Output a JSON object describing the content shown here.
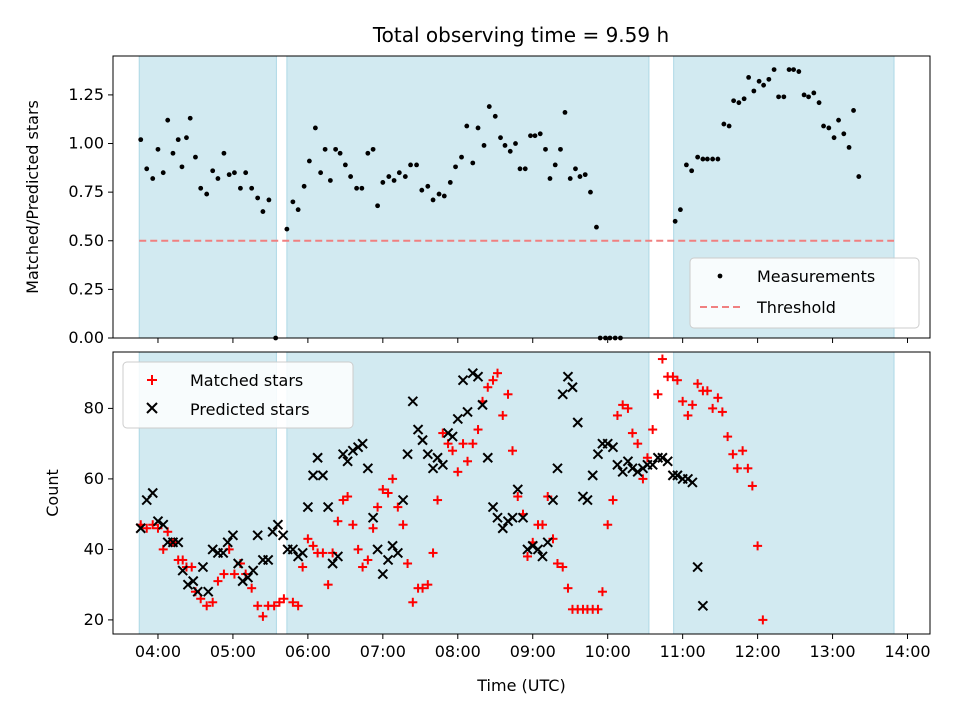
{
  "chart_data": {
    "title": "Total observing time = 9.59 h",
    "xlabel": "Time (UTC)",
    "xticks": [
      "04:00",
      "05:00",
      "06:00",
      "07:00",
      "08:00",
      "09:00",
      "10:00",
      "11:00",
      "12:00",
      "13:00",
      "14:00"
    ],
    "xlim_hours": [
      3.4,
      14.3
    ],
    "observing_windows_hours": [
      [
        3.75,
        5.58
      ],
      [
        5.72,
        10.55
      ],
      [
        10.88,
        13.82
      ]
    ],
    "band_color": "#add8e6",
    "top": {
      "type": "scatter",
      "ylabel": "Matched/Predicted stars",
      "ylim": [
        0,
        1.45
      ],
      "yticks": [
        "0.00",
        "0.25",
        "0.50",
        "0.75",
        "1.00",
        "1.25"
      ],
      "threshold": 0.5,
      "threshold_color": "#f08080",
      "legend": {
        "measurements": "Measurements",
        "threshold": "Threshold",
        "position": "lower right"
      },
      "points": [
        [
          3.77,
          1.02
        ],
        [
          3.85,
          0.87
        ],
        [
          3.93,
          0.82
        ],
        [
          4.0,
          0.97
        ],
        [
          4.07,
          0.85
        ],
        [
          4.13,
          1.12
        ],
        [
          4.2,
          0.95
        ],
        [
          4.27,
          1.02
        ],
        [
          4.32,
          0.88
        ],
        [
          4.38,
          1.03
        ],
        [
          4.43,
          1.13
        ],
        [
          4.5,
          0.93
        ],
        [
          4.57,
          0.77
        ],
        [
          4.65,
          0.74
        ],
        [
          4.73,
          0.86
        ],
        [
          4.8,
          0.82
        ],
        [
          4.88,
          0.95
        ],
        [
          4.95,
          0.84
        ],
        [
          5.02,
          0.85
        ],
        [
          5.1,
          0.77
        ],
        [
          5.17,
          0.85
        ],
        [
          5.25,
          0.77
        ],
        [
          5.33,
          0.72
        ],
        [
          5.4,
          0.65
        ],
        [
          5.48,
          0.71
        ],
        [
          5.57,
          0.0
        ],
        [
          5.72,
          0.56
        ],
        [
          5.8,
          0.7
        ],
        [
          5.87,
          0.66
        ],
        [
          5.95,
          0.78
        ],
        [
          6.02,
          0.91
        ],
        [
          6.1,
          1.08
        ],
        [
          6.17,
          0.85
        ],
        [
          6.23,
          0.97
        ],
        [
          6.3,
          0.81
        ],
        [
          6.37,
          0.97
        ],
        [
          6.43,
          0.95
        ],
        [
          6.5,
          0.89
        ],
        [
          6.57,
          0.83
        ],
        [
          6.65,
          0.77
        ],
        [
          6.72,
          0.77
        ],
        [
          6.8,
          0.95
        ],
        [
          6.87,
          0.97
        ],
        [
          6.93,
          0.68
        ],
        [
          7.0,
          0.8
        ],
        [
          7.08,
          0.83
        ],
        [
          7.15,
          0.81
        ],
        [
          7.22,
          0.85
        ],
        [
          7.3,
          0.83
        ],
        [
          7.37,
          0.89
        ],
        [
          7.45,
          0.89
        ],
        [
          7.52,
          0.76
        ],
        [
          7.6,
          0.78
        ],
        [
          7.67,
          0.71
        ],
        [
          7.75,
          0.74
        ],
        [
          7.82,
          0.73
        ],
        [
          7.9,
          0.8
        ],
        [
          7.97,
          0.88
        ],
        [
          8.05,
          0.93
        ],
        [
          8.12,
          1.09
        ],
        [
          8.2,
          0.9
        ],
        [
          8.27,
          1.08
        ],
        [
          8.35,
          0.99
        ],
        [
          8.42,
          1.19
        ],
        [
          8.5,
          1.14
        ],
        [
          8.57,
          1.03
        ],
        [
          8.63,
          0.99
        ],
        [
          8.7,
          0.96
        ],
        [
          8.77,
          1.0
        ],
        [
          8.83,
          0.87
        ],
        [
          8.9,
          0.87
        ],
        [
          8.97,
          1.04
        ],
        [
          9.03,
          1.04
        ],
        [
          9.1,
          1.05
        ],
        [
          9.17,
          0.97
        ],
        [
          9.23,
          0.82
        ],
        [
          9.3,
          0.89
        ],
        [
          9.37,
          0.97
        ],
        [
          9.43,
          1.16
        ],
        [
          9.5,
          0.82
        ],
        [
          9.57,
          0.87
        ],
        [
          9.63,
          0.83
        ],
        [
          9.7,
          0.84
        ],
        [
          9.77,
          0.75
        ],
        [
          9.85,
          0.57
        ],
        [
          9.9,
          0.0
        ],
        [
          9.97,
          0.0
        ],
        [
          10.03,
          0.0
        ],
        [
          10.1,
          0.0
        ],
        [
          10.17,
          0.0
        ],
        [
          10.9,
          0.6
        ],
        [
          10.97,
          0.66
        ],
        [
          11.05,
          0.89
        ],
        [
          11.12,
          0.86
        ],
        [
          11.2,
          0.93
        ],
        [
          11.27,
          0.92
        ],
        [
          11.33,
          0.92
        ],
        [
          11.4,
          0.92
        ],
        [
          11.47,
          0.92
        ],
        [
          11.55,
          1.1
        ],
        [
          11.62,
          1.09
        ],
        [
          11.68,
          1.22
        ],
        [
          11.75,
          1.21
        ],
        [
          11.82,
          1.23
        ],
        [
          11.88,
          1.34
        ],
        [
          11.95,
          1.27
        ],
        [
          12.02,
          1.32
        ],
        [
          12.08,
          1.3
        ],
        [
          12.15,
          1.33
        ],
        [
          12.22,
          1.38
        ],
        [
          12.28,
          1.24
        ],
        [
          12.35,
          1.24
        ],
        [
          12.42,
          1.38
        ],
        [
          12.48,
          1.38
        ],
        [
          12.55,
          1.37
        ],
        [
          12.62,
          1.25
        ],
        [
          12.68,
          1.24
        ],
        [
          12.75,
          1.26
        ],
        [
          12.82,
          1.21
        ],
        [
          12.88,
          1.09
        ],
        [
          12.95,
          1.08
        ],
        [
          13.02,
          1.03
        ],
        [
          13.08,
          1.12
        ],
        [
          13.15,
          1.05
        ],
        [
          13.22,
          0.98
        ],
        [
          13.28,
          1.17
        ],
        [
          13.35,
          0.83
        ]
      ]
    },
    "bottom": {
      "type": "scatter",
      "ylabel": "Count",
      "ylim": [
        16,
        96
      ],
      "yticks": [
        "20",
        "40",
        "60",
        "80"
      ],
      "legend": {
        "matched": "Matched stars",
        "predicted": "Predicted stars",
        "position": "upper left"
      },
      "matched_color": "#ff0000",
      "predicted_color": "#000000",
      "matched": [
        [
          3.77,
          47
        ],
        [
          3.85,
          46
        ],
        [
          3.93,
          47
        ],
        [
          4.0,
          46
        ],
        [
          4.07,
          40
        ],
        [
          4.13,
          45
        ],
        [
          4.2,
          42
        ],
        [
          4.27,
          37
        ],
        [
          4.33,
          37
        ],
        [
          4.38,
          35
        ],
        [
          4.45,
          35
        ],
        [
          4.5,
          28
        ],
        [
          4.57,
          26
        ],
        [
          4.65,
          24
        ],
        [
          4.73,
          25
        ],
        [
          4.8,
          31
        ],
        [
          4.88,
          33
        ],
        [
          4.95,
          40
        ],
        [
          5.02,
          33
        ],
        [
          5.1,
          36
        ],
        [
          5.17,
          33
        ],
        [
          5.25,
          29
        ],
        [
          5.33,
          24
        ],
        [
          5.4,
          21
        ],
        [
          5.47,
          24
        ],
        [
          5.55,
          24
        ],
        [
          5.62,
          25
        ],
        [
          5.68,
          26
        ],
        [
          5.8,
          25
        ],
        [
          5.87,
          24
        ],
        [
          5.93,
          35
        ],
        [
          6.0,
          43
        ],
        [
          6.07,
          41
        ],
        [
          6.13,
          39
        ],
        [
          6.2,
          39
        ],
        [
          6.27,
          30
        ],
        [
          6.33,
          39
        ],
        [
          6.4,
          48
        ],
        [
          6.47,
          54
        ],
        [
          6.53,
          55
        ],
        [
          6.6,
          47
        ],
        [
          6.67,
          40
        ],
        [
          6.73,
          35
        ],
        [
          6.8,
          37
        ],
        [
          6.87,
          46
        ],
        [
          6.93,
          52
        ],
        [
          7.0,
          57
        ],
        [
          7.07,
          56
        ],
        [
          7.13,
          60
        ],
        [
          7.2,
          52
        ],
        [
          7.27,
          47
        ],
        [
          7.33,
          36
        ],
        [
          7.4,
          25
        ],
        [
          7.47,
          29
        ],
        [
          7.53,
          29
        ],
        [
          7.6,
          30
        ],
        [
          7.67,
          39
        ],
        [
          7.73,
          54
        ],
        [
          7.8,
          73
        ],
        [
          7.87,
          70
        ],
        [
          7.93,
          68
        ],
        [
          8.0,
          62
        ],
        [
          8.07,
          70
        ],
        [
          8.13,
          65
        ],
        [
          8.2,
          70
        ],
        [
          8.27,
          74
        ],
        [
          8.33,
          82
        ],
        [
          8.4,
          86
        ],
        [
          8.47,
          88
        ],
        [
          8.53,
          90
        ],
        [
          8.6,
          78
        ],
        [
          8.67,
          84
        ],
        [
          8.73,
          68
        ],
        [
          8.8,
          55
        ],
        [
          8.87,
          50
        ],
        [
          8.93,
          38
        ],
        [
          9.0,
          42
        ],
        [
          9.07,
          47
        ],
        [
          9.13,
          47
        ],
        [
          9.2,
          55
        ],
        [
          9.27,
          43
        ],
        [
          9.33,
          36
        ],
        [
          9.4,
          35
        ],
        [
          9.47,
          29
        ],
        [
          9.53,
          23
        ],
        [
          9.6,
          23
        ],
        [
          9.67,
          23
        ],
        [
          9.73,
          23
        ],
        [
          9.8,
          23
        ],
        [
          9.87,
          23
        ],
        [
          9.93,
          28
        ],
        [
          10.0,
          47
        ],
        [
          10.07,
          54
        ],
        [
          10.13,
          78
        ],
        [
          10.2,
          81
        ],
        [
          10.27,
          80
        ],
        [
          10.33,
          73
        ],
        [
          10.4,
          70
        ],
        [
          10.47,
          60
        ],
        [
          10.53,
          66
        ],
        [
          10.6,
          74
        ],
        [
          10.67,
          84
        ],
        [
          10.73,
          94
        ],
        [
          10.8,
          89
        ],
        [
          10.87,
          89
        ],
        [
          10.93,
          88
        ],
        [
          11.0,
          82
        ],
        [
          11.07,
          78
        ],
        [
          11.13,
          81
        ],
        [
          11.2,
          87
        ],
        [
          11.27,
          85
        ],
        [
          11.33,
          85
        ],
        [
          11.4,
          80
        ],
        [
          11.47,
          83
        ],
        [
          11.53,
          79
        ],
        [
          11.6,
          72
        ],
        [
          11.67,
          67
        ],
        [
          11.73,
          63
        ],
        [
          11.8,
          68
        ],
        [
          11.87,
          63
        ],
        [
          11.93,
          58
        ],
        [
          12.0,
          41
        ],
        [
          12.07,
          20
        ]
      ],
      "predicted": [
        [
          3.77,
          46
        ],
        [
          3.85,
          54
        ],
        [
          3.93,
          56
        ],
        [
          4.0,
          48
        ],
        [
          4.07,
          47
        ],
        [
          4.13,
          42
        ],
        [
          4.2,
          42
        ],
        [
          4.27,
          42
        ],
        [
          4.33,
          34
        ],
        [
          4.4,
          30
        ],
        [
          4.47,
          31
        ],
        [
          4.53,
          28
        ],
        [
          4.6,
          35
        ],
        [
          4.67,
          28
        ],
        [
          4.73,
          40
        ],
        [
          4.8,
          39
        ],
        [
          4.87,
          39
        ],
        [
          4.93,
          42
        ],
        [
          5.0,
          44
        ],
        [
          5.07,
          36
        ],
        [
          5.13,
          31
        ],
        [
          5.2,
          32
        ],
        [
          5.27,
          34
        ],
        [
          5.33,
          44
        ],
        [
          5.4,
          37
        ],
        [
          5.47,
          37
        ],
        [
          5.53,
          45
        ],
        [
          5.6,
          47
        ],
        [
          5.67,
          44
        ],
        [
          5.73,
          40
        ],
        [
          5.8,
          40
        ],
        [
          5.87,
          38
        ],
        [
          5.93,
          39
        ],
        [
          6.0,
          52
        ],
        [
          6.07,
          61
        ],
        [
          6.13,
          66
        ],
        [
          6.2,
          61
        ],
        [
          6.27,
          52
        ],
        [
          6.33,
          36
        ],
        [
          6.4,
          38
        ],
        [
          6.47,
          67
        ],
        [
          6.53,
          65
        ],
        [
          6.6,
          68
        ],
        [
          6.67,
          69
        ],
        [
          6.73,
          70
        ],
        [
          6.8,
          63
        ],
        [
          6.87,
          49
        ],
        [
          6.93,
          40
        ],
        [
          7.0,
          33
        ],
        [
          7.07,
          37
        ],
        [
          7.13,
          41
        ],
        [
          7.2,
          39
        ],
        [
          7.27,
          54
        ],
        [
          7.33,
          67
        ],
        [
          7.4,
          82
        ],
        [
          7.47,
          74
        ],
        [
          7.53,
          71
        ],
        [
          7.6,
          67
        ],
        [
          7.67,
          63
        ],
        [
          7.73,
          66
        ],
        [
          7.8,
          64
        ],
        [
          7.87,
          73
        ],
        [
          7.93,
          72
        ],
        [
          8.0,
          77
        ],
        [
          8.07,
          88
        ],
        [
          8.13,
          79
        ],
        [
          8.2,
          90
        ],
        [
          8.27,
          89
        ],
        [
          8.33,
          81
        ],
        [
          8.4,
          66
        ],
        [
          8.47,
          52
        ],
        [
          8.53,
          49
        ],
        [
          8.6,
          46
        ],
        [
          8.67,
          48
        ],
        [
          8.73,
          49
        ],
        [
          8.8,
          57
        ],
        [
          8.87,
          49
        ],
        [
          8.93,
          40
        ],
        [
          9.0,
          41
        ],
        [
          9.07,
          40
        ],
        [
          9.13,
          38
        ],
        [
          9.2,
          42
        ],
        [
          9.27,
          54
        ],
        [
          9.33,
          63
        ],
        [
          9.4,
          84
        ],
        [
          9.47,
          89
        ],
        [
          9.53,
          86
        ],
        [
          9.6,
          76
        ],
        [
          9.67,
          55
        ],
        [
          9.73,
          54
        ],
        [
          9.8,
          61
        ],
        [
          9.87,
          67
        ],
        [
          9.93,
          70
        ],
        [
          10.0,
          70
        ],
        [
          10.07,
          69
        ],
        [
          10.13,
          64
        ],
        [
          10.2,
          62
        ],
        [
          10.27,
          65
        ],
        [
          10.33,
          63
        ],
        [
          10.4,
          62
        ],
        [
          10.47,
          63
        ],
        [
          10.53,
          64
        ],
        [
          10.6,
          64
        ],
        [
          10.67,
          66
        ],
        [
          10.73,
          66
        ],
        [
          10.8,
          65
        ],
        [
          10.87,
          61
        ],
        [
          10.93,
          61
        ],
        [
          11.0,
          60
        ],
        [
          11.07,
          60
        ],
        [
          11.13,
          59
        ],
        [
          11.2,
          35
        ],
        [
          11.27,
          24
        ]
      ]
    }
  }
}
